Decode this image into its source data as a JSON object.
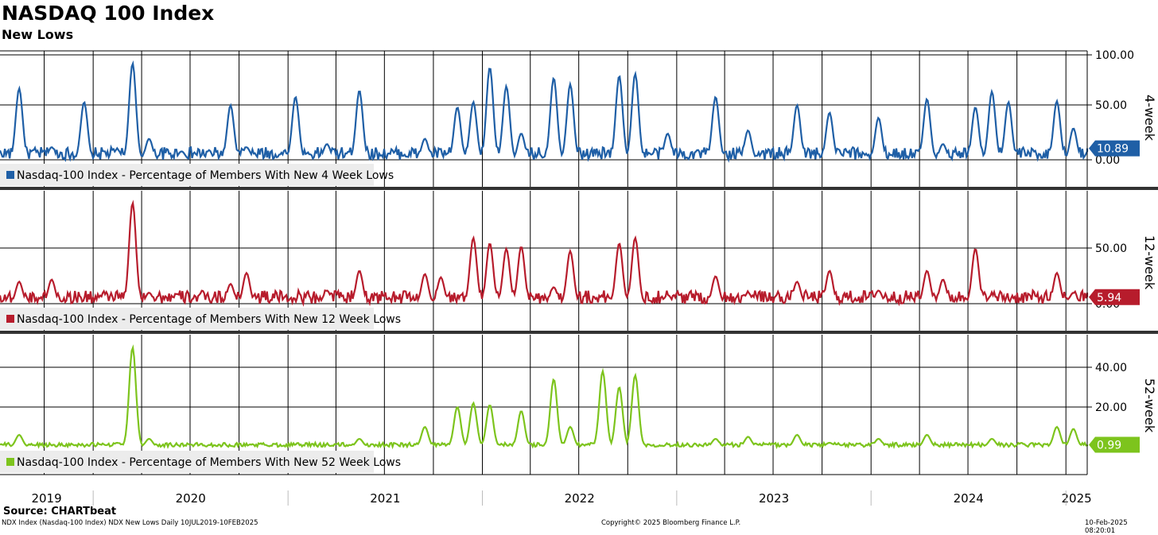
{
  "header": {
    "title": "NASDAQ 100 Index",
    "subtitle": "New Lows"
  },
  "footer": {
    "source": "Source: CHARTbeat",
    "left": "NDX Index (Nasdaq-100 Index) NDX New Lows  Daily 10JUL2019-10FEB2025",
    "center": "Copyright© 2025 Bloomberg Finance L.P.",
    "right": "10-Feb-2025 08:20:01"
  },
  "x_axis": {
    "years": [
      "2019",
      "2020",
      "2021",
      "2022",
      "2023",
      "2024",
      "2025"
    ]
  },
  "chart_data": [
    {
      "type": "line",
      "panel_label": "4-week",
      "legend": "Nasdaq-100 Index - Percentage of Members With New 4 Week Lows",
      "color": "#1f5fa6",
      "ylim": [
        0,
        100
      ],
      "ticks": [
        "100.00",
        "50.00",
        "0.00"
      ],
      "last_value": "10.89",
      "x": [
        "2019-07",
        "2019-08",
        "2019-10",
        "2019-12",
        "2020-02",
        "2020-03",
        "2020-04",
        "2020-06",
        "2020-09",
        "2020-10",
        "2021-01",
        "2021-03",
        "2021-05",
        "2021-09",
        "2021-11",
        "2021-12",
        "2022-01",
        "2022-02",
        "2022-03",
        "2022-05",
        "2022-06",
        "2022-09",
        "2022-10",
        "2022-12",
        "2023-03",
        "2023-05",
        "2023-08",
        "2023-10",
        "2024-01",
        "2024-04",
        "2024-05",
        "2024-07",
        "2024-08",
        "2024-09",
        "2024-12",
        "2025-01",
        "2025-02"
      ],
      "values": [
        3,
        68,
        12,
        55,
        10,
        92,
        20,
        8,
        52,
        12,
        60,
        15,
        66,
        20,
        50,
        55,
        88,
        70,
        25,
        78,
        72,
        80,
        82,
        25,
        60,
        28,
        52,
        45,
        40,
        58,
        15,
        50,
        65,
        55,
        56,
        30,
        10.89
      ]
    },
    {
      "type": "line",
      "panel_label": "12-week",
      "legend": "Nasdaq-100 Index - Percentage of Members With New 12 Week Lows",
      "color": "#b71c2c",
      "ylim": [
        0,
        100
      ],
      "ticks": [
        "50.00",
        "0.00"
      ],
      "last_value": "5.94",
      "x": [
        "2019-07",
        "2019-08",
        "2019-10",
        "2020-02",
        "2020-03",
        "2020-04",
        "2020-09",
        "2020-10",
        "2021-01",
        "2021-03",
        "2021-05",
        "2021-09",
        "2021-10",
        "2021-12",
        "2022-01",
        "2022-02",
        "2022-03",
        "2022-05",
        "2022-06",
        "2022-09",
        "2022-10",
        "2022-12",
        "2023-03",
        "2023-05",
        "2023-08",
        "2023-10",
        "2024-01",
        "2024-04",
        "2024-05",
        "2024-07",
        "2024-08",
        "2024-12",
        "2025-01",
        "2025-02"
      ],
      "values": [
        2,
        20,
        22,
        5,
        92,
        10,
        18,
        28,
        2,
        12,
        30,
        27,
        24,
        60,
        55,
        50,
        52,
        15,
        48,
        55,
        60,
        8,
        25,
        10,
        20,
        30,
        12,
        30,
        22,
        50,
        8,
        28,
        10,
        5.94
      ]
    },
    {
      "type": "line",
      "panel_label": "52-week",
      "legend": "Nasdaq-100 Index - Percentage of Members With New 52 Week Lows",
      "color": "#7dc41d",
      "ylim": [
        0,
        50
      ],
      "ticks": [
        "40.00",
        "20.00"
      ],
      "last_value": "0.99",
      "x": [
        "2019-07",
        "2019-08",
        "2020-02",
        "2020-03",
        "2020-04",
        "2021-01",
        "2021-05",
        "2021-09",
        "2021-11",
        "2021-12",
        "2022-01",
        "2022-03",
        "2022-05",
        "2022-06",
        "2022-08",
        "2022-09",
        "2022-10",
        "2023-03",
        "2023-05",
        "2023-08",
        "2023-10",
        "2024-01",
        "2024-04",
        "2024-08",
        "2024-12",
        "2025-01",
        "2025-02"
      ],
      "values": [
        1,
        6,
        2,
        50,
        4,
        1,
        4,
        10,
        20,
        22,
        21,
        18,
        34,
        10,
        38,
        30,
        36,
        4,
        5,
        6,
        2,
        4,
        6,
        4,
        10,
        9,
        0.99
      ]
    }
  ]
}
